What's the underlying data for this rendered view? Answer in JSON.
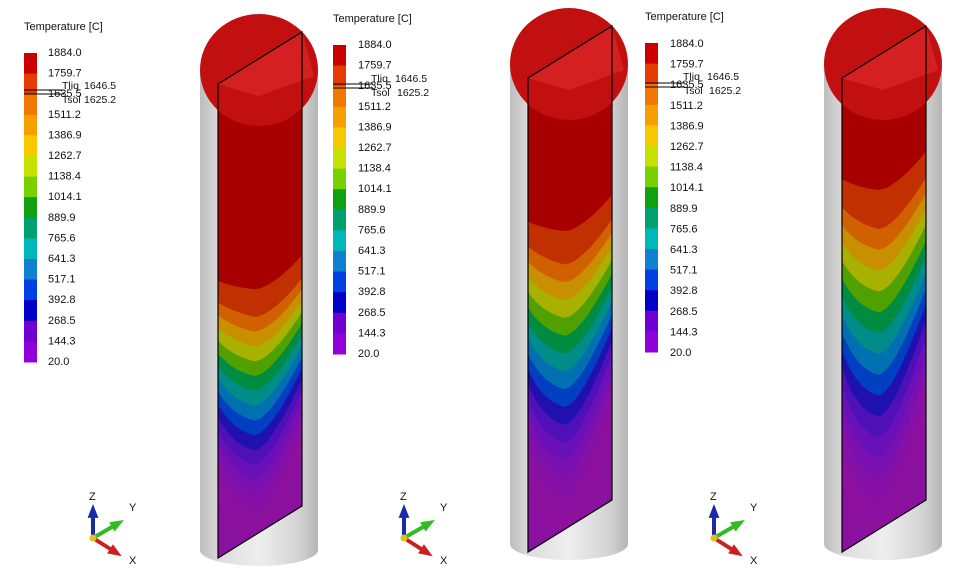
{
  "legend_title": "Temperature [C]",
  "levels": [
    "1884.0",
    "1759.7",
    "1635.5",
    "1511.2",
    "1386.9",
    "1262.7",
    "1138.4",
    "1014.1",
    "889.9",
    "765.6",
    "641.3",
    "517.1",
    "392.8",
    "268.5",
    "144.3",
    "20.0"
  ],
  "level_colors": [
    "#cc0000",
    "#e63c00",
    "#f07800",
    "#f5a000",
    "#f7c800",
    "#c8e000",
    "#78d000",
    "#10a010",
    "#00a070",
    "#00b8b8",
    "#1080d0",
    "#0040e0",
    "#0000c8",
    "#7000d0",
    "#9000d8",
    "#a000b8"
  ],
  "tliq_label": "Tliq",
  "tliq_value": "1646.5",
  "tsol_label": "Tsol",
  "tsol_value": "1625.2",
  "axes": {
    "z": "Z",
    "y": "Y",
    "x": "X"
  },
  "snapshots": [
    {
      "solidification_front_fraction": 0.4
    },
    {
      "solidification_front_fraction": 0.3
    },
    {
      "solidification_front_fraction": 0.22
    }
  ]
}
